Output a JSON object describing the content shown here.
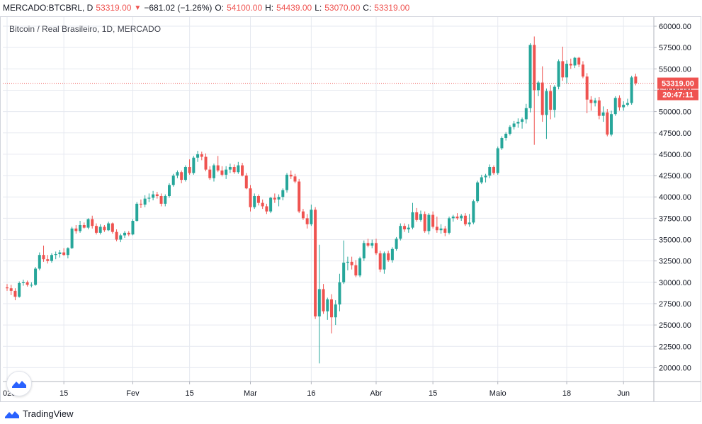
{
  "header": {
    "symbol": "MERCADO:BTCBRL, D",
    "close": "53319.00",
    "change_arrow": "▼",
    "change": "−681.02 (−1.26%)",
    "open_label": "O:",
    "open": "54100.00",
    "high_label": "H:",
    "high": "54439.00",
    "low_label": "L:",
    "low": "53070.00",
    "close_label": "C:",
    "close_value": "53319.00"
  },
  "footer": {
    "brand": "TradingView"
  },
  "colors": {
    "up": "#26a69a",
    "down": "#ef5350",
    "grid": "#e6e9f0",
    "text": "#131722"
  },
  "icons": {
    "badge": "tradingview-badge-icon",
    "footer_logo": "tradingview-logo-icon"
  },
  "chart_data": {
    "type": "candlestick",
    "title": "Bitcoin / Real Brasileiro, 1D, MERCADO",
    "y_ticks": [
      "60000.00",
      "57500.00",
      "55000.00",
      "52500.00",
      "50000.00",
      "47500.00",
      "45000.00",
      "42500.00",
      "40000.00",
      "37500.00",
      "35000.00",
      "32500.00",
      "30000.00",
      "27500.00",
      "25000.00",
      "22500.00",
      "20000.00"
    ],
    "ylim": [
      19000,
      61000
    ],
    "x_ticks": [
      "020",
      "15",
      "Fev",
      "15",
      "Mar",
      "16",
      "Abr",
      "15",
      "Maio",
      "18",
      "Jun"
    ],
    "x_tick_dates": [
      "2020-01-01",
      "2020-01-15",
      "2020-02-01",
      "2020-02-15",
      "2020-03-01",
      "2020-03-16",
      "2020-04-01",
      "2020-04-15",
      "2020-05-01",
      "2020-05-18",
      "2020-06-01"
    ],
    "last_price": {
      "value": 53319.0,
      "label": "53319.00",
      "countdown": "20:47:11"
    },
    "candles": [
      [
        "2020-01-01",
        29400,
        29800,
        29000,
        29300
      ],
      [
        "2020-01-02",
        29300,
        29700,
        28500,
        29000
      ],
      [
        "2020-01-03",
        29000,
        29300,
        27900,
        28300
      ],
      [
        "2020-01-04",
        28300,
        30100,
        28200,
        29900
      ],
      [
        "2020-01-05",
        29900,
        30300,
        29600,
        30000
      ],
      [
        "2020-01-06",
        30000,
        30200,
        29500,
        29700
      ],
      [
        "2020-01-07",
        29700,
        30000,
        29400,
        29700
      ],
      [
        "2020-01-08",
        29700,
        31800,
        29600,
        31600
      ],
      [
        "2020-01-09",
        31600,
        33500,
        31400,
        33200
      ],
      [
        "2020-01-10",
        33200,
        34300,
        32400,
        32700
      ],
      [
        "2020-01-11",
        32700,
        33200,
        32200,
        32500
      ],
      [
        "2020-01-12",
        32500,
        33400,
        32300,
        33200
      ],
      [
        "2020-01-13",
        33200,
        33600,
        32700,
        33300
      ],
      [
        "2020-01-14",
        33300,
        33800,
        32900,
        33500
      ],
      [
        "2020-01-15",
        33500,
        34000,
        33100,
        33200
      ],
      [
        "2020-01-16",
        33200,
        34100,
        32800,
        34000
      ],
      [
        "2020-01-17",
        34000,
        36500,
        33900,
        36300
      ],
      [
        "2020-01-18",
        36300,
        36700,
        35700,
        36000
      ],
      [
        "2020-01-19",
        36000,
        37200,
        35800,
        36700
      ],
      [
        "2020-01-20",
        36700,
        37000,
        36300,
        36400
      ],
      [
        "2020-01-21",
        36400,
        37500,
        36200,
        37400
      ],
      [
        "2020-01-22",
        37400,
        37800,
        36300,
        36600
      ],
      [
        "2020-01-23",
        36600,
        36900,
        35600,
        35800
      ],
      [
        "2020-01-24",
        35800,
        36800,
        35600,
        36500
      ],
      [
        "2020-01-25",
        36500,
        36700,
        35900,
        36100
      ],
      [
        "2020-01-26",
        36100,
        37100,
        36000,
        36900
      ],
      [
        "2020-01-27",
        36900,
        37000,
        35700,
        35900
      ],
      [
        "2020-01-28",
        35900,
        36200,
        34800,
        35000
      ],
      [
        "2020-01-29",
        35000,
        35700,
        34700,
        35500
      ],
      [
        "2020-01-30",
        35500,
        36000,
        35200,
        35800
      ],
      [
        "2020-01-31",
        35800,
        36000,
        35400,
        35600
      ],
      [
        "2020-02-01",
        35600,
        37400,
        35500,
        37200
      ],
      [
        "2020-02-02",
        37200,
        39400,
        37100,
        39200
      ],
      [
        "2020-02-03",
        39200,
        39700,
        38700,
        39100
      ],
      [
        "2020-02-04",
        39100,
        40200,
        38800,
        39800
      ],
      [
        "2020-02-05",
        39800,
        40400,
        39400,
        39900
      ],
      [
        "2020-02-06",
        39900,
        40700,
        39600,
        40300
      ],
      [
        "2020-02-07",
        40300,
        40600,
        39800,
        40100
      ],
      [
        "2020-02-08",
        40100,
        40400,
        38900,
        39200
      ],
      [
        "2020-02-09",
        39200,
        40300,
        38900,
        40100
      ],
      [
        "2020-02-10",
        40100,
        41600,
        39900,
        41400
      ],
      [
        "2020-02-11",
        41400,
        42700,
        41200,
        42500
      ],
      [
        "2020-02-12",
        42500,
        43100,
        42200,
        42900
      ],
      [
        "2020-02-13",
        42900,
        43100,
        41600,
        42000
      ],
      [
        "2020-02-14",
        42000,
        43700,
        41800,
        43500
      ],
      [
        "2020-02-15",
        43500,
        44400,
        42600,
        42800
      ],
      [
        "2020-02-16",
        42800,
        44800,
        42600,
        44600
      ],
      [
        "2020-02-17",
        44600,
        45400,
        44100,
        45000
      ],
      [
        "2020-02-18",
        45000,
        45300,
        44300,
        44700
      ],
      [
        "2020-02-19",
        44700,
        45100,
        43000,
        43200
      ],
      [
        "2020-02-20",
        43200,
        43600,
        42000,
        42200
      ],
      [
        "2020-02-21",
        42200,
        43900,
        41800,
        43700
      ],
      [
        "2020-02-22",
        43700,
        44800,
        42900,
        43100
      ],
      [
        "2020-02-23",
        43100,
        43600,
        42400,
        42600
      ],
      [
        "2020-02-24",
        42600,
        43600,
        42100,
        43200
      ],
      [
        "2020-02-25",
        43200,
        43900,
        42800,
        43500
      ],
      [
        "2020-02-26",
        43500,
        43800,
        42700,
        42900
      ],
      [
        "2020-02-27",
        42900,
        44100,
        42700,
        43700
      ],
      [
        "2020-02-28",
        43700,
        44000,
        42400,
        42500
      ],
      [
        "2020-02-29",
        42500,
        42800,
        40900,
        41000
      ],
      [
        "2020-03-01",
        41000,
        41400,
        38300,
        38800
      ],
      [
        "2020-03-02",
        38800,
        40400,
        38600,
        40100
      ],
      [
        "2020-03-03",
        40100,
        40300,
        39000,
        39300
      ],
      [
        "2020-03-04",
        39300,
        39700,
        38600,
        38900
      ],
      [
        "2020-03-05",
        38900,
        39200,
        38000,
        38300
      ],
      [
        "2020-03-06",
        38300,
        40000,
        38100,
        39900
      ],
      [
        "2020-03-07",
        39900,
        40400,
        39300,
        39700
      ],
      [
        "2020-03-08",
        39700,
        40300,
        38900,
        40000
      ],
      [
        "2020-03-09",
        40000,
        41000,
        39600,
        40800
      ],
      [
        "2020-03-10",
        40800,
        42800,
        40500,
        42600
      ],
      [
        "2020-03-11",
        42600,
        43100,
        42100,
        42400
      ],
      [
        "2020-03-12",
        42400,
        42700,
        41600,
        41800
      ],
      [
        "2020-03-13",
        41800,
        42100,
        38100,
        38300
      ],
      [
        "2020-03-14",
        38300,
        38600,
        37300,
        37500
      ],
      [
        "2020-03-15",
        37500,
        38000,
        36300,
        36800
      ],
      [
        "2020-03-16",
        36800,
        39100,
        36600,
        38500
      ],
      [
        "2020-03-17",
        38500,
        38800,
        25700,
        26000
      ],
      [
        "2020-03-18",
        26000,
        34400,
        20500,
        29200
      ],
      [
        "2020-03-19",
        29200,
        29800,
        26300,
        26600
      ],
      [
        "2020-03-20",
        26600,
        28200,
        25600,
        28000
      ],
      [
        "2020-03-21",
        28000,
        28600,
        24000,
        25900
      ],
      [
        "2020-03-22",
        25900,
        27900,
        25000,
        27400
      ],
      [
        "2020-03-23",
        27400,
        31000,
        26600,
        30000
      ],
      [
        "2020-03-24",
        30000,
        34900,
        29800,
        32300
      ],
      [
        "2020-03-25",
        32300,
        33000,
        31400,
        32400
      ],
      [
        "2020-03-26",
        32400,
        33000,
        31500,
        32000
      ],
      [
        "2020-03-27",
        32000,
        32600,
        30600,
        30800
      ],
      [
        "2020-03-28",
        30800,
        33000,
        30600,
        32800
      ],
      [
        "2020-03-29",
        32800,
        34900,
        32500,
        34600
      ],
      [
        "2020-03-30",
        34600,
        35100,
        34100,
        34300
      ],
      [
        "2020-03-31",
        34300,
        35000,
        34000,
        34600
      ],
      [
        "2020-04-01",
        34600,
        35100,
        33200,
        33400
      ],
      [
        "2020-04-02",
        33400,
        33700,
        31200,
        31500
      ],
      [
        "2020-04-03",
        31500,
        33600,
        31000,
        33400
      ],
      [
        "2020-04-04",
        33400,
        33700,
        32400,
        32600
      ],
      [
        "2020-04-05",
        32600,
        34100,
        32300,
        33900
      ],
      [
        "2020-04-06",
        33900,
        35300,
        33700,
        35100
      ],
      [
        "2020-04-07",
        35100,
        36900,
        34900,
        36600
      ],
      [
        "2020-04-08",
        36600,
        36900,
        35900,
        36200
      ],
      [
        "2020-04-09",
        36200,
        36800,
        35800,
        36400
      ],
      [
        "2020-04-10",
        36400,
        39300,
        36200,
        38200
      ],
      [
        "2020-04-11",
        38200,
        38700,
        37100,
        37300
      ],
      [
        "2020-04-12",
        37300,
        38400,
        37100,
        38000
      ],
      [
        "2020-04-13",
        38000,
        38300,
        35800,
        36000
      ],
      [
        "2020-04-14",
        36000,
        38100,
        35600,
        37900
      ],
      [
        "2020-04-15",
        37900,
        38300,
        36300,
        36500
      ],
      [
        "2020-04-16",
        36500,
        37700,
        35800,
        36100
      ],
      [
        "2020-04-17",
        36100,
        36800,
        35700,
        36300
      ],
      [
        "2020-04-18",
        36300,
        36600,
        35400,
        35800
      ],
      [
        "2020-04-19",
        35800,
        37700,
        35600,
        37500
      ],
      [
        "2020-04-20",
        37500,
        37900,
        37100,
        37700
      ],
      [
        "2020-04-21",
        37700,
        38100,
        37300,
        37500
      ],
      [
        "2020-04-22",
        37500,
        38000,
        37200,
        37800
      ],
      [
        "2020-04-23",
        37800,
        38100,
        36600,
        36800
      ],
      [
        "2020-04-24",
        36800,
        38000,
        36500,
        37000
      ],
      [
        "2020-04-25",
        37000,
        39700,
        36800,
        39500
      ],
      [
        "2020-04-26",
        39500,
        41900,
        39300,
        41700
      ],
      [
        "2020-04-27",
        41700,
        42600,
        41500,
        42300
      ],
      [
        "2020-04-28",
        42300,
        42700,
        41700,
        42500
      ],
      [
        "2020-04-29",
        42500,
        43800,
        42200,
        43500
      ],
      [
        "2020-04-30",
        43500,
        43700,
        42600,
        42800
      ],
      [
        "2020-05-01",
        42800,
        45900,
        42600,
        45700
      ],
      [
        "2020-05-02",
        45700,
        47100,
        45500,
        46900
      ],
      [
        "2020-05-03",
        46900,
        47600,
        46600,
        47400
      ],
      [
        "2020-05-04",
        47400,
        48400,
        47200,
        48200
      ],
      [
        "2020-05-05",
        48200,
        48900,
        47900,
        48600
      ],
      [
        "2020-05-06",
        48600,
        49200,
        48100,
        48800
      ],
      [
        "2020-05-07",
        48800,
        49300,
        48000,
        49100
      ],
      [
        "2020-05-08",
        49100,
        50900,
        48600,
        50400
      ],
      [
        "2020-05-09",
        50400,
        58000,
        49900,
        57800
      ],
      [
        "2020-05-10",
        57800,
        58800,
        46100,
        52500
      ],
      [
        "2020-05-11",
        52500,
        53600,
        51800,
        53400
      ],
      [
        "2020-05-12",
        53400,
        55300,
        48800,
        49600
      ],
      [
        "2020-05-13",
        49600,
        52700,
        46800,
        52400
      ],
      [
        "2020-05-14",
        52400,
        53100,
        49100,
        50200
      ],
      [
        "2020-05-15",
        50200,
        53100,
        49300,
        52900
      ],
      [
        "2020-05-16",
        52900,
        56100,
        52600,
        55900
      ],
      [
        "2020-05-17",
        55900,
        57600,
        53600,
        54000
      ],
      [
        "2020-05-18",
        54000,
        56000,
        53300,
        55600
      ],
      [
        "2020-05-19",
        55600,
        56200,
        55000,
        55400
      ],
      [
        "2020-05-20",
        55400,
        56400,
        55100,
        56300
      ],
      [
        "2020-05-21",
        56300,
        56400,
        55200,
        55500
      ],
      [
        "2020-05-22",
        55500,
        55900,
        53900,
        54100
      ],
      [
        "2020-05-23",
        54100,
        54500,
        49800,
        51400
      ],
      [
        "2020-05-24",
        51400,
        51800,
        50100,
        51000
      ],
      [
        "2020-05-25",
        51000,
        51600,
        50600,
        51300
      ],
      [
        "2020-05-26",
        51300,
        51700,
        49100,
        49500
      ],
      [
        "2020-05-27",
        49500,
        50600,
        48800,
        49900
      ],
      [
        "2020-05-28",
        49900,
        50300,
        47100,
        47300
      ],
      [
        "2020-05-29",
        47300,
        50100,
        47100,
        49700
      ],
      [
        "2020-05-30",
        49700,
        51800,
        49500,
        51600
      ],
      [
        "2020-05-31",
        51600,
        51900,
        50100,
        50500
      ],
      [
        "2020-06-01",
        50500,
        51200,
        50100,
        50800
      ],
      [
        "2020-06-02",
        50800,
        51500,
        50600,
        51000
      ],
      [
        "2020-06-03",
        51000,
        54200,
        50800,
        54000
      ],
      [
        "2020-06-04",
        54100,
        54439,
        53070,
        53319
      ]
    ]
  }
}
